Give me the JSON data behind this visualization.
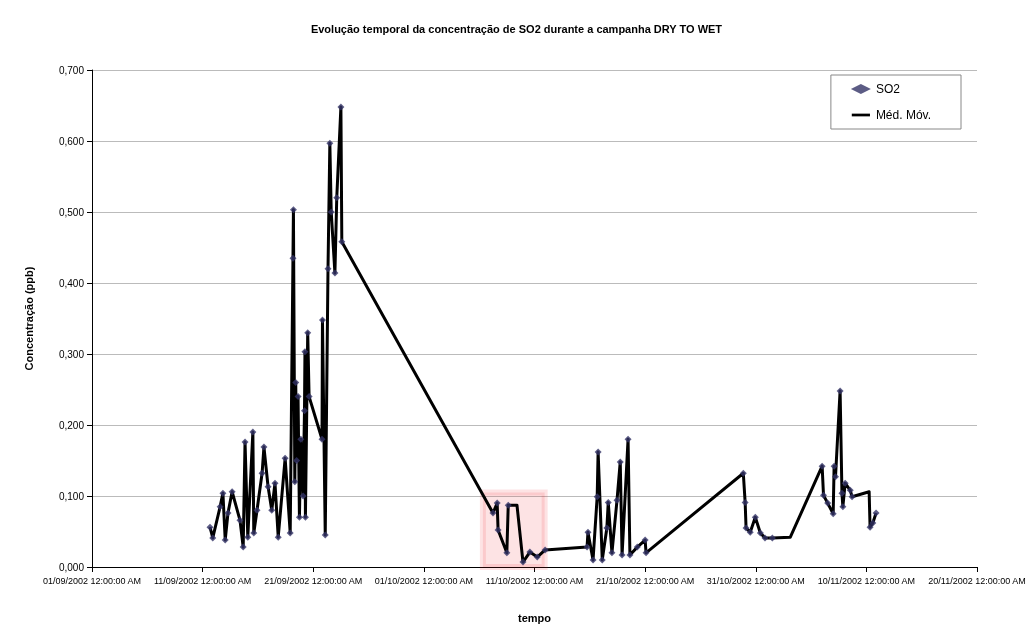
{
  "chart_data": {
    "type": "scatter",
    "title": "Evolução temporal da concentração de SO2 durante a campanha DRY TO WET",
    "xlabel": "tempo",
    "ylabel": "Concentração (ppb)",
    "xlim": [
      "2002-09-01",
      "2002-11-20"
    ],
    "xticks": [
      {
        "value": "2002-09-01",
        "label": "01/09/2002 12:00:00 AM"
      },
      {
        "value": "2002-09-11",
        "label": "11/09/2002 12:00:00 AM"
      },
      {
        "value": "2002-09-21",
        "label": "21/09/2002 12:00:00 AM"
      },
      {
        "value": "2002-10-01",
        "label": "01/10/2002 12:00:00 AM"
      },
      {
        "value": "2002-10-11",
        "label": "11/10/2002 12:00:00 AM"
      },
      {
        "value": "2002-10-21",
        "label": "21/10/2002 12:00:00 AM"
      },
      {
        "value": "2002-10-31",
        "label": "31/10/2002 12:00:00 AM"
      },
      {
        "value": "2002-11-10",
        "label": "10/11/2002 12:00:00 AM"
      },
      {
        "value": "2002-11-20",
        "label": "20/11/2002 12:00:00 AM"
      }
    ],
    "ylim": [
      0,
      0.7
    ],
    "yticks": [
      {
        "value": 0,
        "label": "0,000"
      },
      {
        "value": 0.1,
        "label": "0,100"
      },
      {
        "value": 0.2,
        "label": "0,200"
      },
      {
        "value": 0.3,
        "label": "0,300"
      },
      {
        "value": 0.4,
        "label": "0,400"
      },
      {
        "value": 0.5,
        "label": "0,500"
      },
      {
        "value": 0.6,
        "label": "0,600"
      },
      {
        "value": 0.7,
        "label": "0,700"
      }
    ],
    "grid": "y",
    "legend": "top right",
    "bands": [
      {
        "axis": "x",
        "from": "2002-10-06T08:00",
        "to": "2002-10-11T22:00",
        "color": "#ee1c25"
      }
    ],
    "series": [
      {
        "name": "SO2",
        "marker": "diamond",
        "color": "#333366",
        "x": [
          "2002-09-11T16:00",
          "2002-09-11T22:00",
          "2002-09-12T14:00",
          "2002-09-12T20:00",
          "2002-09-13T01:00",
          "2002-09-13T07:00",
          "2002-09-13T16:00",
          "2002-09-14T09:00",
          "2002-09-14T16:00",
          "2002-09-14T20:00",
          "2002-09-15T02:00",
          "2002-09-15T13:00",
          "2002-09-15T15:00",
          "2002-09-15T22:00",
          "2002-09-16T09:00",
          "2002-09-16T13:00",
          "2002-09-16T22:00",
          "2002-09-17T06:00",
          "2002-09-17T13:00",
          "2002-09-17T20:00",
          "2002-09-18T11:00",
          "2002-09-18T22:00",
          "2002-09-19T04:00",
          "2002-09-19T05:00",
          "2002-09-19T08:00",
          "2002-09-19T10:00",
          "2002-09-19T12:00",
          "2002-09-19T15:00",
          "2002-09-19T18:00",
          "2002-09-19T21:00",
          "2002-09-20T02:00",
          "2002-09-20T05:00",
          "2002-09-20T06:00",
          "2002-09-20T07:00",
          "2002-09-20T12:00",
          "2002-09-20T15:00",
          "2002-09-21T19:00",
          "2002-09-21T20:00",
          "2002-09-22T02:00",
          "2002-09-22T08:00",
          "2002-09-22T12:00",
          "2002-09-22T15:00",
          "2002-09-22T23:00",
          "2002-09-23T03:00",
          "2002-09-23T12:00",
          "2002-09-23T14:00",
          "2002-10-07T06:00",
          "2002-10-07T15:00",
          "2002-10-07T17:00",
          "2002-10-08T12:00",
          "2002-10-08T15:00",
          "2002-10-09T23:00",
          "2002-10-10T14:00",
          "2002-10-11T06:00",
          "2002-10-11T23:00",
          "2002-10-15T18:00",
          "2002-10-15T20:00",
          "2002-10-16T07:00",
          "2002-10-16T16:00",
          "2002-10-16T18:00",
          "2002-10-17T03:00",
          "2002-10-17T13:00",
          "2002-10-17T16:00",
          "2002-10-18T00:00",
          "2002-10-18T11:00",
          "2002-10-18T18:00",
          "2002-10-18T22:00",
          "2002-10-19T11:00",
          "2002-10-19T15:00",
          "2002-10-20T07:00",
          "2002-10-21T00:00",
          "2002-10-21T02:00",
          "2002-10-29T21:00",
          "2002-10-30T01:00",
          "2002-10-30T03:00",
          "2002-10-30T12:00",
          "2002-10-30T23:00",
          "2002-10-31T10:00",
          "2002-10-31T20:00",
          "2002-11-01T12:00",
          "2002-11-06T00:00",
          "2002-11-06T03:00",
          "2002-11-06T12:00",
          "2002-11-07T00:00",
          "2002-11-07T02:00",
          "2002-11-07T05:00",
          "2002-11-07T15:00",
          "2002-11-07T19:00",
          "2002-11-07T21:00",
          "2002-11-08T02:00",
          "2002-11-08T13:00",
          "2002-11-08T17:00",
          "2002-11-10T08:00",
          "2002-11-10T14:00",
          "2002-11-10T21:00"
        ],
        "values": [
          0.056,
          0.041,
          0.085,
          0.104,
          0.038,
          0.076,
          0.106,
          0.066,
          0.028,
          0.176,
          0.042,
          0.19,
          0.048,
          0.08,
          0.132,
          0.169,
          0.113,
          0.08,
          0.118,
          0.042,
          0.153,
          0.048,
          0.435,
          0.503,
          0.12,
          0.26,
          0.15,
          0.24,
          0.07,
          0.18,
          0.1,
          0.22,
          0.303,
          0.07,
          0.33,
          0.24,
          0.18,
          0.348,
          0.045,
          0.42,
          0.597,
          0.5,
          0.414,
          0.52,
          0.648,
          0.458,
          0.076,
          0.09,
          0.052,
          0.02,
          0.087,
          0.007,
          0.021,
          0.014,
          0.024,
          0.028,
          0.049,
          0.01,
          0.099,
          0.162,
          0.01,
          0.055,
          0.091,
          0.02,
          0.094,
          0.148,
          0.017,
          0.18,
          0.017,
          0.028,
          0.038,
          0.02,
          0.132,
          0.091,
          0.055,
          0.049,
          0.07,
          0.048,
          0.041,
          0.041,
          0.142,
          0.101,
          0.09,
          0.075,
          0.142,
          0.127,
          0.248,
          0.104,
          0.085,
          0.118,
          0.108,
          0.099,
          0.056,
          0.062,
          0.076
        ]
      },
      {
        "name": "Méd. Móv.",
        "type": "line",
        "color": "#000000",
        "line_style": "solid",
        "marker": "none",
        "x": [
          "2002-09-11T16:00",
          "2002-09-11T22:00",
          "2002-09-12T14:00",
          "2002-09-12T20:00",
          "2002-09-13T01:00",
          "2002-09-13T07:00",
          "2002-09-13T16:00",
          "2002-09-14T09:00",
          "2002-09-14T16:00",
          "2002-09-14T20:00",
          "2002-09-15T02:00",
          "2002-09-15T13:00",
          "2002-09-15T15:00",
          "2002-09-15T22:00",
          "2002-09-16T09:00",
          "2002-09-16T13:00",
          "2002-09-16T22:00",
          "2002-09-17T06:00",
          "2002-09-17T13:00",
          "2002-09-17T20:00",
          "2002-09-18T11:00",
          "2002-09-18T22:00",
          "2002-09-19T04:00",
          "2002-09-19T05:00",
          "2002-09-19T08:00",
          "2002-09-19T10:00",
          "2002-09-19T12:00",
          "2002-09-19T15:00",
          "2002-09-19T18:00",
          "2002-09-19T21:00",
          "2002-09-20T02:00",
          "2002-09-20T05:00",
          "2002-09-20T06:00",
          "2002-09-20T07:00",
          "2002-09-20T12:00",
          "2002-09-20T15:00",
          "2002-09-21T19:00",
          "2002-09-21T20:00",
          "2002-09-22T02:00",
          "2002-09-22T08:00",
          "2002-09-22T12:00",
          "2002-09-22T15:00",
          "2002-09-22T23:00",
          "2002-09-23T03:00",
          "2002-09-23T12:00",
          "2002-09-23T14:00",
          "2002-10-07T06:00",
          "2002-10-07T15:00",
          "2002-10-07T17:00",
          "2002-10-08T12:00",
          "2002-10-08T15:00",
          "2002-10-09T10:00",
          "2002-10-09T23:00",
          "2002-10-10T14:00",
          "2002-10-11T06:00",
          "2002-10-11T23:00",
          "2002-10-15T18:00",
          "2002-10-15T20:00",
          "2002-10-16T07:00",
          "2002-10-16T16:00",
          "2002-10-16T18:00",
          "2002-10-17T03:00",
          "2002-10-17T13:00",
          "2002-10-17T16:00",
          "2002-10-18T00:00",
          "2002-10-18T11:00",
          "2002-10-18T18:00",
          "2002-10-18T22:00",
          "2002-10-19T11:00",
          "2002-10-19T15:00",
          "2002-10-20T07:00",
          "2002-10-21T00:00",
          "2002-10-21T02:00",
          "2002-10-29T21:00",
          "2002-10-30T01:00",
          "2002-10-30T03:00",
          "2002-10-30T12:00",
          "2002-10-30T23:00",
          "2002-10-31T10:00",
          "2002-10-31T20:00",
          "2002-11-01T12:00",
          "2002-11-03T03:00",
          "2002-11-06T00:00",
          "2002-11-06T03:00",
          "2002-11-06T12:00",
          "2002-11-07T00:00",
          "2002-11-07T02:00",
          "2002-11-07T05:00",
          "2002-11-07T15:00",
          "2002-11-07T19:00",
          "2002-11-07T21:00",
          "2002-11-08T02:00",
          "2002-11-08T13:00",
          "2002-11-08T17:00",
          "2002-11-10T06:00",
          "2002-11-10T08:00",
          "2002-11-10T14:00",
          "2002-11-10T21:00"
        ],
        "values": [
          0.056,
          0.041,
          0.085,
          0.104,
          0.038,
          0.076,
          0.106,
          0.066,
          0.028,
          0.176,
          0.042,
          0.19,
          0.048,
          0.08,
          0.132,
          0.169,
          0.113,
          0.08,
          0.118,
          0.042,
          0.153,
          0.048,
          0.435,
          0.503,
          0.12,
          0.26,
          0.15,
          0.24,
          0.07,
          0.18,
          0.1,
          0.22,
          0.303,
          0.07,
          0.33,
          0.24,
          0.18,
          0.348,
          0.045,
          0.42,
          0.597,
          0.5,
          0.414,
          0.52,
          0.648,
          0.458,
          0.076,
          0.09,
          0.052,
          0.02,
          0.087,
          0.087,
          0.007,
          0.021,
          0.014,
          0.024,
          0.028,
          0.049,
          0.01,
          0.099,
          0.162,
          0.01,
          0.055,
          0.091,
          0.02,
          0.094,
          0.148,
          0.017,
          0.18,
          0.017,
          0.028,
          0.038,
          0.02,
          0.132,
          0.091,
          0.055,
          0.049,
          0.07,
          0.048,
          0.041,
          0.041,
          0.042,
          0.142,
          0.101,
          0.09,
          0.075,
          0.142,
          0.127,
          0.248,
          0.104,
          0.085,
          0.118,
          0.108,
          0.099,
          0.106,
          0.056,
          0.062,
          0.076
        ]
      }
    ]
  }
}
